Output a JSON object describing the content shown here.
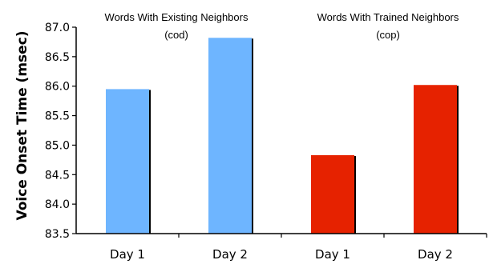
{
  "chart_data": {
    "type": "bar",
    "ylabel": "Voice Onset Time (msec)",
    "ylim": [
      83.5,
      87.0
    ],
    "yticks": [
      "83.5",
      "84.0",
      "84.5",
      "85.0",
      "85.5",
      "86.0",
      "86.5",
      "87.0"
    ],
    "categories": [
      "Day 1",
      "Day 2",
      "Day 1",
      "Day 2"
    ],
    "values": [
      85.95,
      86.82,
      84.83,
      86.02
    ],
    "bar_colors": [
      "#6EB5FF",
      "#6EB5FF",
      "#E62200",
      "#E62200"
    ],
    "grid": false,
    "annotations": [
      {
        "line1": "Words With Existing Neighbors",
        "line2": "(cod)"
      },
      {
        "line1": "Words With Trained Neighbors",
        "line2": "(cop)"
      }
    ]
  }
}
